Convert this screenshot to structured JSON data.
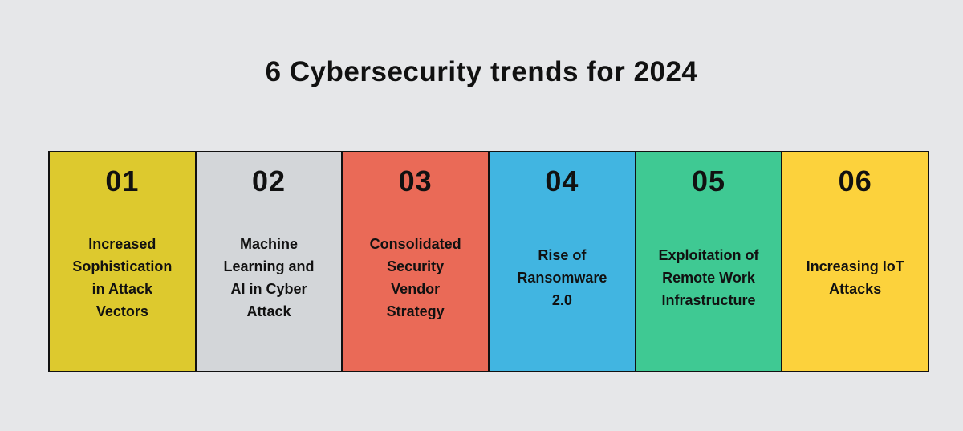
{
  "page": {
    "background_color": "#e6e7e9",
    "text_color": "#111111",
    "border_color": "#111111"
  },
  "title": "6 Cybersecurity trends for 2024",
  "cards": [
    {
      "number": "01",
      "label": "Increased\nSophistication\nin Attack\nVectors",
      "color": "#ddc92e"
    },
    {
      "number": "02",
      "label": "Machine\nLearning and\nAI in Cyber\nAttack",
      "color": "#d3d6d9"
    },
    {
      "number": "03",
      "label": "Consolidated\nSecurity\nVendor\nStrategy",
      "color": "#ea6a57"
    },
    {
      "number": "04",
      "label": "Rise of\nRansomware\n2.0",
      "color": "#41b5e1"
    },
    {
      "number": "05",
      "label": "Exploitation of\nRemote Work\nInfrastructure",
      "color": "#3fc993"
    },
    {
      "number": "06",
      "label": "Increasing IoT\nAttacks",
      "color": "#fcd23c"
    }
  ]
}
